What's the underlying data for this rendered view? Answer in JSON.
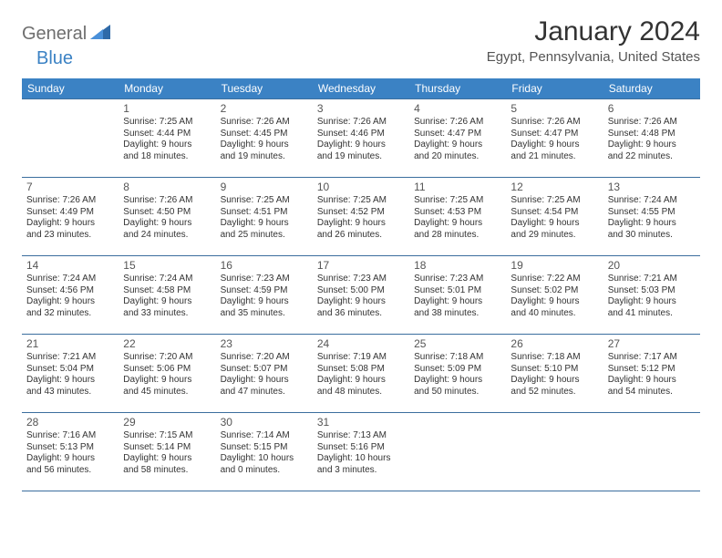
{
  "brand": {
    "part1": "General",
    "part2": "Blue"
  },
  "title": "January 2024",
  "location": "Egypt, Pennsylvania, United States",
  "colors": {
    "header_bg": "#3b82c4",
    "header_text": "#ffffff",
    "border": "#3b6e9e",
    "text": "#333333",
    "muted": "#555555",
    "brand_gray": "#6e6e6e",
    "brand_blue": "#3b82c4",
    "page_bg": "#ffffff"
  },
  "weekdays": [
    "Sunday",
    "Monday",
    "Tuesday",
    "Wednesday",
    "Thursday",
    "Friday",
    "Saturday"
  ],
  "weeks": [
    [
      null,
      {
        "n": "1",
        "sr": "Sunrise: 7:25 AM",
        "ss": "Sunset: 4:44 PM",
        "d1": "Daylight: 9 hours",
        "d2": "and 18 minutes."
      },
      {
        "n": "2",
        "sr": "Sunrise: 7:26 AM",
        "ss": "Sunset: 4:45 PM",
        "d1": "Daylight: 9 hours",
        "d2": "and 19 minutes."
      },
      {
        "n": "3",
        "sr": "Sunrise: 7:26 AM",
        "ss": "Sunset: 4:46 PM",
        "d1": "Daylight: 9 hours",
        "d2": "and 19 minutes."
      },
      {
        "n": "4",
        "sr": "Sunrise: 7:26 AM",
        "ss": "Sunset: 4:47 PM",
        "d1": "Daylight: 9 hours",
        "d2": "and 20 minutes."
      },
      {
        "n": "5",
        "sr": "Sunrise: 7:26 AM",
        "ss": "Sunset: 4:47 PM",
        "d1": "Daylight: 9 hours",
        "d2": "and 21 minutes."
      },
      {
        "n": "6",
        "sr": "Sunrise: 7:26 AM",
        "ss": "Sunset: 4:48 PM",
        "d1": "Daylight: 9 hours",
        "d2": "and 22 minutes."
      }
    ],
    [
      {
        "n": "7",
        "sr": "Sunrise: 7:26 AM",
        "ss": "Sunset: 4:49 PM",
        "d1": "Daylight: 9 hours",
        "d2": "and 23 minutes."
      },
      {
        "n": "8",
        "sr": "Sunrise: 7:26 AM",
        "ss": "Sunset: 4:50 PM",
        "d1": "Daylight: 9 hours",
        "d2": "and 24 minutes."
      },
      {
        "n": "9",
        "sr": "Sunrise: 7:25 AM",
        "ss": "Sunset: 4:51 PM",
        "d1": "Daylight: 9 hours",
        "d2": "and 25 minutes."
      },
      {
        "n": "10",
        "sr": "Sunrise: 7:25 AM",
        "ss": "Sunset: 4:52 PM",
        "d1": "Daylight: 9 hours",
        "d2": "and 26 minutes."
      },
      {
        "n": "11",
        "sr": "Sunrise: 7:25 AM",
        "ss": "Sunset: 4:53 PM",
        "d1": "Daylight: 9 hours",
        "d2": "and 28 minutes."
      },
      {
        "n": "12",
        "sr": "Sunrise: 7:25 AM",
        "ss": "Sunset: 4:54 PM",
        "d1": "Daylight: 9 hours",
        "d2": "and 29 minutes."
      },
      {
        "n": "13",
        "sr": "Sunrise: 7:24 AM",
        "ss": "Sunset: 4:55 PM",
        "d1": "Daylight: 9 hours",
        "d2": "and 30 minutes."
      }
    ],
    [
      {
        "n": "14",
        "sr": "Sunrise: 7:24 AM",
        "ss": "Sunset: 4:56 PM",
        "d1": "Daylight: 9 hours",
        "d2": "and 32 minutes."
      },
      {
        "n": "15",
        "sr": "Sunrise: 7:24 AM",
        "ss": "Sunset: 4:58 PM",
        "d1": "Daylight: 9 hours",
        "d2": "and 33 minutes."
      },
      {
        "n": "16",
        "sr": "Sunrise: 7:23 AM",
        "ss": "Sunset: 4:59 PM",
        "d1": "Daylight: 9 hours",
        "d2": "and 35 minutes."
      },
      {
        "n": "17",
        "sr": "Sunrise: 7:23 AM",
        "ss": "Sunset: 5:00 PM",
        "d1": "Daylight: 9 hours",
        "d2": "and 36 minutes."
      },
      {
        "n": "18",
        "sr": "Sunrise: 7:23 AM",
        "ss": "Sunset: 5:01 PM",
        "d1": "Daylight: 9 hours",
        "d2": "and 38 minutes."
      },
      {
        "n": "19",
        "sr": "Sunrise: 7:22 AM",
        "ss": "Sunset: 5:02 PM",
        "d1": "Daylight: 9 hours",
        "d2": "and 40 minutes."
      },
      {
        "n": "20",
        "sr": "Sunrise: 7:21 AM",
        "ss": "Sunset: 5:03 PM",
        "d1": "Daylight: 9 hours",
        "d2": "and 41 minutes."
      }
    ],
    [
      {
        "n": "21",
        "sr": "Sunrise: 7:21 AM",
        "ss": "Sunset: 5:04 PM",
        "d1": "Daylight: 9 hours",
        "d2": "and 43 minutes."
      },
      {
        "n": "22",
        "sr": "Sunrise: 7:20 AM",
        "ss": "Sunset: 5:06 PM",
        "d1": "Daylight: 9 hours",
        "d2": "and 45 minutes."
      },
      {
        "n": "23",
        "sr": "Sunrise: 7:20 AM",
        "ss": "Sunset: 5:07 PM",
        "d1": "Daylight: 9 hours",
        "d2": "and 47 minutes."
      },
      {
        "n": "24",
        "sr": "Sunrise: 7:19 AM",
        "ss": "Sunset: 5:08 PM",
        "d1": "Daylight: 9 hours",
        "d2": "and 48 minutes."
      },
      {
        "n": "25",
        "sr": "Sunrise: 7:18 AM",
        "ss": "Sunset: 5:09 PM",
        "d1": "Daylight: 9 hours",
        "d2": "and 50 minutes."
      },
      {
        "n": "26",
        "sr": "Sunrise: 7:18 AM",
        "ss": "Sunset: 5:10 PM",
        "d1": "Daylight: 9 hours",
        "d2": "and 52 minutes."
      },
      {
        "n": "27",
        "sr": "Sunrise: 7:17 AM",
        "ss": "Sunset: 5:12 PM",
        "d1": "Daylight: 9 hours",
        "d2": "and 54 minutes."
      }
    ],
    [
      {
        "n": "28",
        "sr": "Sunrise: 7:16 AM",
        "ss": "Sunset: 5:13 PM",
        "d1": "Daylight: 9 hours",
        "d2": "and 56 minutes."
      },
      {
        "n": "29",
        "sr": "Sunrise: 7:15 AM",
        "ss": "Sunset: 5:14 PM",
        "d1": "Daylight: 9 hours",
        "d2": "and 58 minutes."
      },
      {
        "n": "30",
        "sr": "Sunrise: 7:14 AM",
        "ss": "Sunset: 5:15 PM",
        "d1": "Daylight: 10 hours",
        "d2": "and 0 minutes."
      },
      {
        "n": "31",
        "sr": "Sunrise: 7:13 AM",
        "ss": "Sunset: 5:16 PM",
        "d1": "Daylight: 10 hours",
        "d2": "and 3 minutes."
      },
      null,
      null,
      null
    ]
  ]
}
